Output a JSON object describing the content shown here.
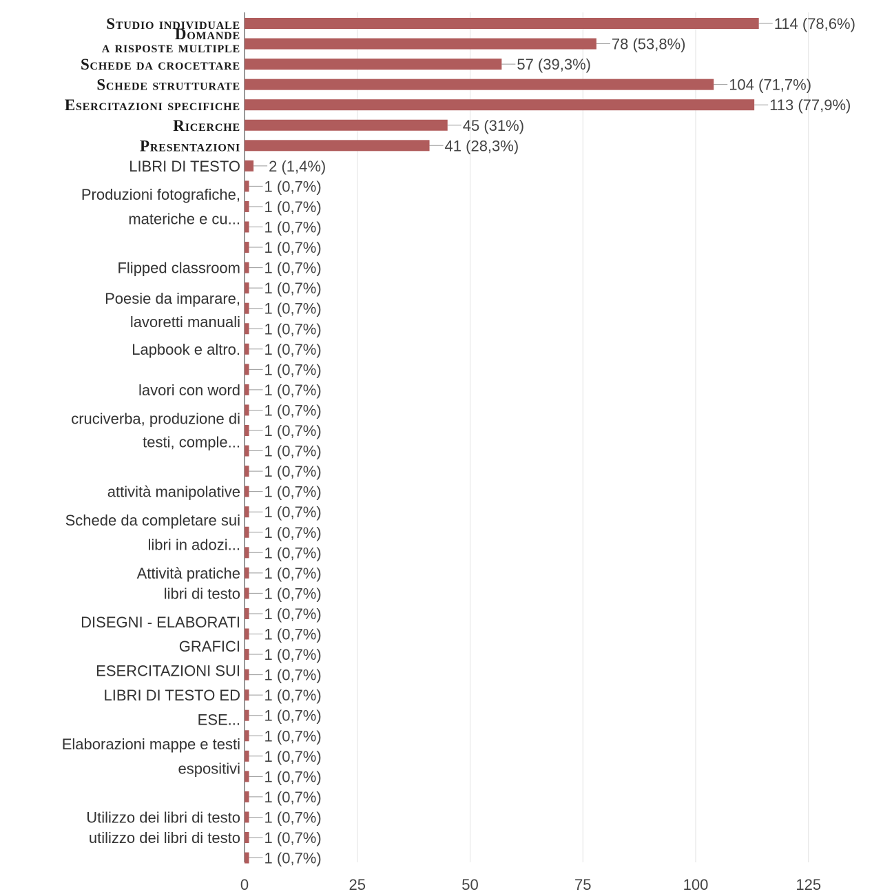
{
  "chart_data": {
    "type": "bar",
    "orientation": "horizontal",
    "xlim": [
      0,
      125
    ],
    "xticks": [
      "0",
      "25",
      "50",
      "75",
      "100",
      "125"
    ],
    "grid": true,
    "colors": {
      "bar": "#b05c5c",
      "grid": "#e2e2e2",
      "axis": "#555555",
      "label_text": "#333333",
      "value_text": "#444444"
    },
    "group_labels": [
      {
        "text": "Studio individuale",
        "style": "smallcaps",
        "row": 0
      },
      {
        "text": "Domande",
        "style": "smallcaps",
        "row": 0.5
      },
      {
        "text": "a risposte multiple",
        "style": "smallcaps",
        "row": 1.15
      },
      {
        "text": "Schede da crocettare",
        "style": "smallcaps",
        "row": 2
      },
      {
        "text": "Schede strutturate",
        "style": "smallcaps",
        "row": 3
      },
      {
        "text": "Esercitazioni specifiche",
        "style": "smallcaps",
        "row": 4
      },
      {
        "text": "Ricerche",
        "style": "smallcaps",
        "row": 5
      },
      {
        "text": "Presentazioni",
        "style": "smallcaps",
        "row": 6
      },
      {
        "text": "LIBRI DI TESTO",
        "style": "plain",
        "row": 7
      },
      {
        "text": "Produzioni fotografiche,",
        "style": "plain",
        "row": 8.4
      },
      {
        "text": "materiche e cu...",
        "style": "plain",
        "row": 9.6
      },
      {
        "text": "Flipped classroom",
        "style": "plain",
        "row": 12
      },
      {
        "text": "Poesie da imparare,",
        "style": "plain",
        "row": 13.5
      },
      {
        "text": "lavoretti manuali",
        "style": "plain",
        "row": 14.65
      },
      {
        "text": "Lapbook e altro.",
        "style": "plain",
        "row": 16
      },
      {
        "text": "lavori con word",
        "style": "plain",
        "row": 18
      },
      {
        "text": "cruciverba, produzione di",
        "style": "plain",
        "row": 19.4
      },
      {
        "text": "testi, comple...",
        "style": "plain",
        "row": 20.55
      },
      {
        "text": "attività manipolative",
        "style": "plain",
        "row": 23
      },
      {
        "text": "Schede da completare sui",
        "style": "plain",
        "row": 24.4
      },
      {
        "text": "libri in adozi...",
        "style": "plain",
        "row": 25.6
      },
      {
        "text": "Attività pratiche",
        "style": "plain",
        "row": 27
      },
      {
        "text": "libri di testo",
        "style": "plain",
        "row": 28
      },
      {
        "text": "DISEGNI - ELABORATI",
        "style": "plain",
        "row": 29.4
      },
      {
        "text": "GRAFICI",
        "style": "plain",
        "row": 30.6
      },
      {
        "text": "ESERCITAZIONI SUI",
        "style": "plain",
        "row": 31.8
      },
      {
        "text": "LIBRI DI TESTO ED",
        "style": "plain",
        "row": 33
      },
      {
        "text": "ESE...",
        "style": "plain",
        "row": 34.2
      },
      {
        "text": "Elaborazioni mappe e testi",
        "style": "plain",
        "row": 35.4
      },
      {
        "text": "espositivi",
        "style": "plain",
        "row": 36.6
      },
      {
        "text": "Utilizzo dei libri di testo",
        "style": "plain",
        "row": 39
      },
      {
        "text": "utilizzo dei libri di testo",
        "style": "plain",
        "row": 40
      }
    ],
    "values": [
      114,
      78,
      57,
      104,
      113,
      45,
      41,
      2,
      1,
      1,
      1,
      1,
      1,
      1,
      1,
      1,
      1,
      1,
      1,
      1,
      1,
      1,
      1,
      1,
      1,
      1,
      1,
      1,
      1,
      1,
      1,
      1,
      1,
      1,
      1,
      1,
      1,
      1,
      1,
      1,
      1,
      1
    ],
    "value_labels": [
      "114 (78,6%)",
      "78 (53,8%)",
      "57 (39,3%)",
      "104 (71,7%)",
      "113 (77,9%)",
      "45 (31%)",
      "41 (28,3%)",
      "2 (1,4%)",
      "1 (0,7%)",
      "1 (0,7%)",
      "1 (0,7%)",
      "1 (0,7%)",
      "1 (0,7%)",
      "1 (0,7%)",
      "1 (0,7%)",
      "1 (0,7%)",
      "1 (0,7%)",
      "1 (0,7%)",
      "1 (0,7%)",
      "1 (0,7%)",
      "1 (0,7%)",
      "1 (0,7%)",
      "1 (0,7%)",
      "1 (0,7%)",
      "1 (0,7%)",
      "1 (0,7%)",
      "1 (0,7%)",
      "1 (0,7%)",
      "1 (0,7%)",
      "1 (0,7%)",
      "1 (0,7%)",
      "1 (0,7%)",
      "1 (0,7%)",
      "1 (0,7%)",
      "1 (0,7%)",
      "1 (0,7%)",
      "1 (0,7%)",
      "1 (0,7%)",
      "1 (0,7%)",
      "1 (0,7%)",
      "1 (0,7%)",
      "1 (0,7%)"
    ]
  }
}
